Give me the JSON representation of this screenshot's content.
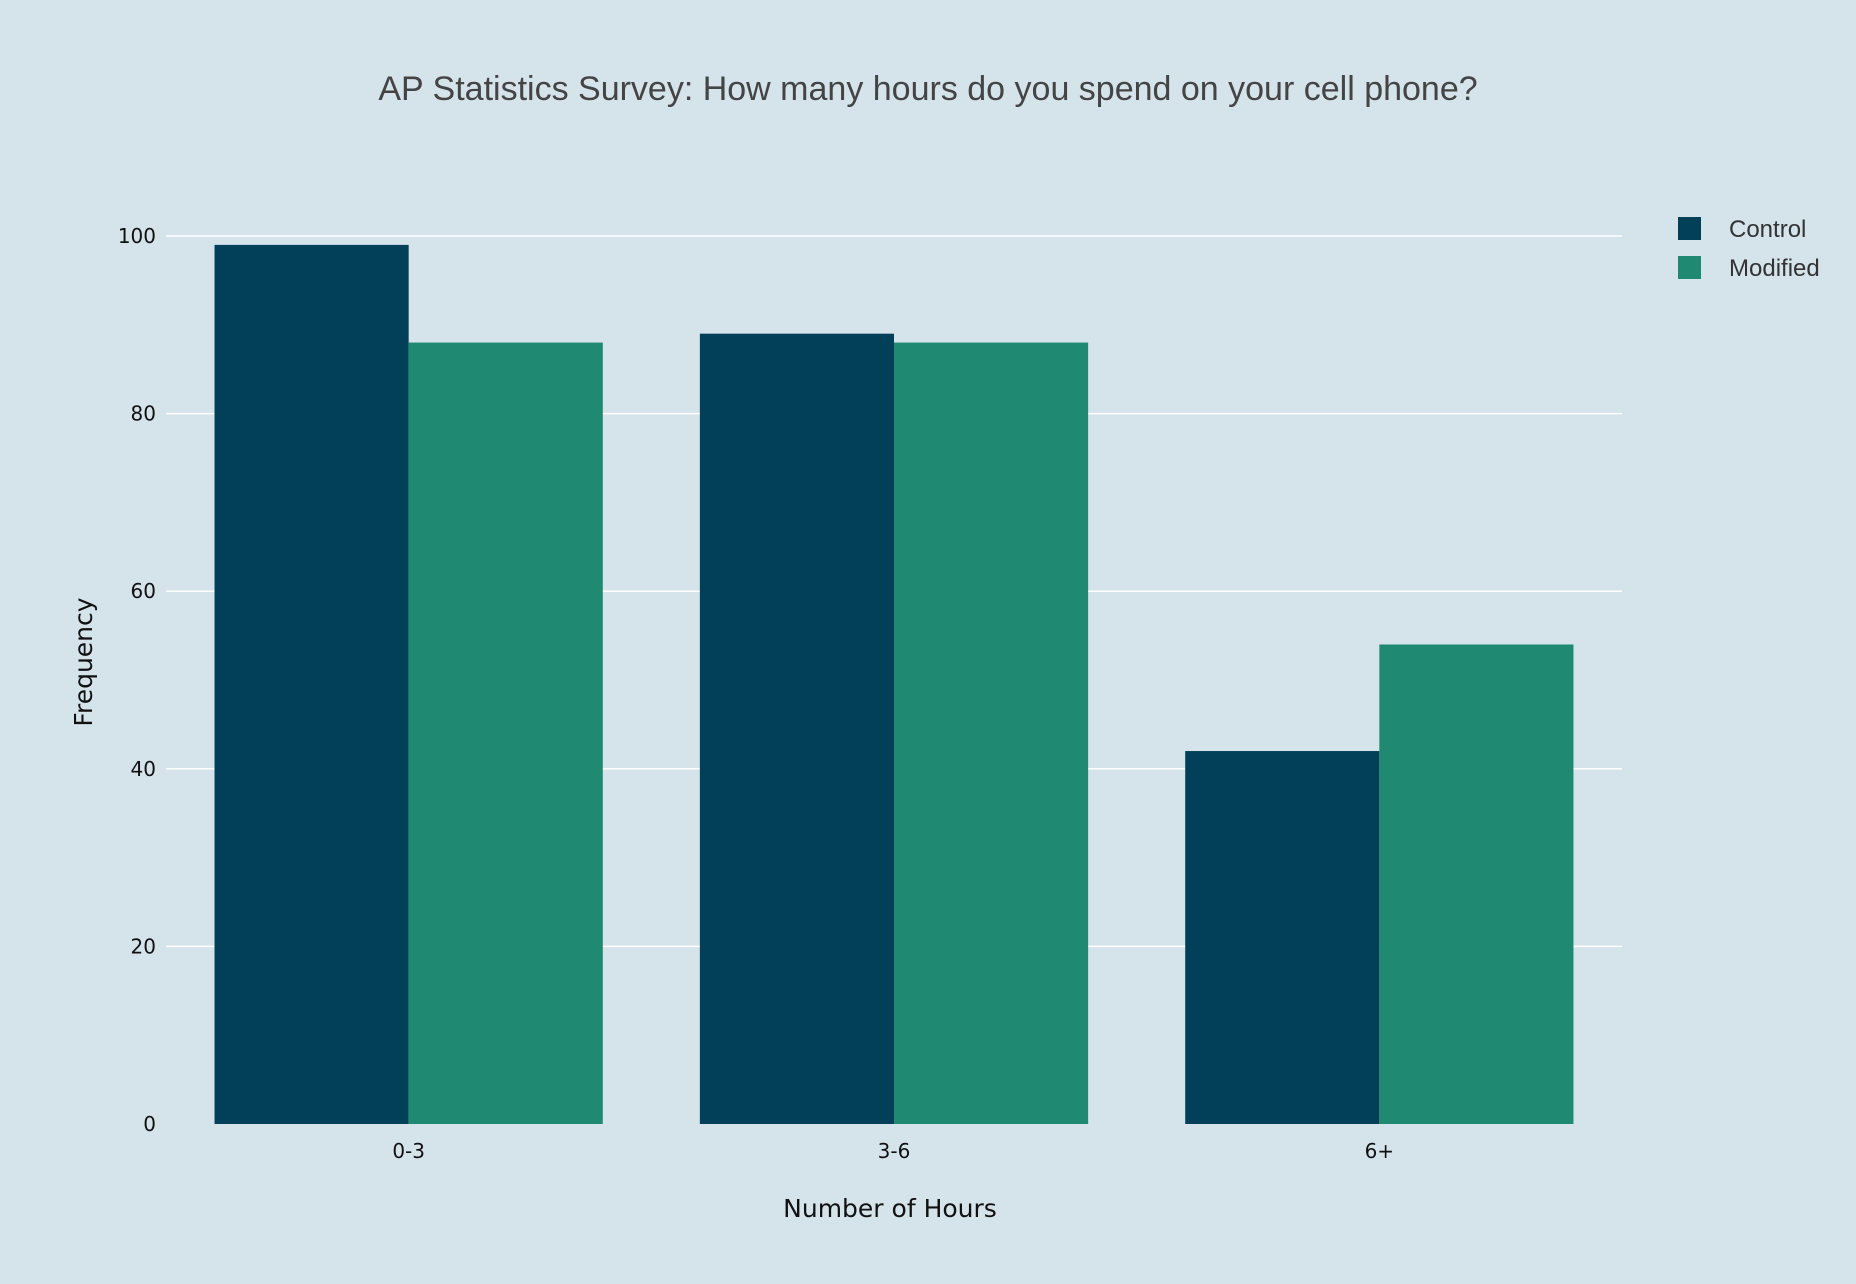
{
  "chart_data": {
    "type": "bar",
    "title": "AP Statistics Survey: How many hours do you spend on your cell phone?",
    "xlabel": "Number of Hours",
    "ylabel": "Frequency",
    "categories": [
      "0-3",
      "3-6",
      "6+"
    ],
    "series": [
      {
        "name": "Control",
        "values": [
          99,
          89,
          42
        ],
        "color": "#023f58"
      },
      {
        "name": "Modified",
        "values": [
          88,
          88,
          54
        ],
        "color": "#1f8a71"
      }
    ],
    "ylim": [
      0,
      100
    ],
    "yticks": [
      0,
      20,
      40,
      60,
      80,
      100
    ],
    "grid": true,
    "legend": "top-right",
    "background": "#d5e3eb"
  }
}
